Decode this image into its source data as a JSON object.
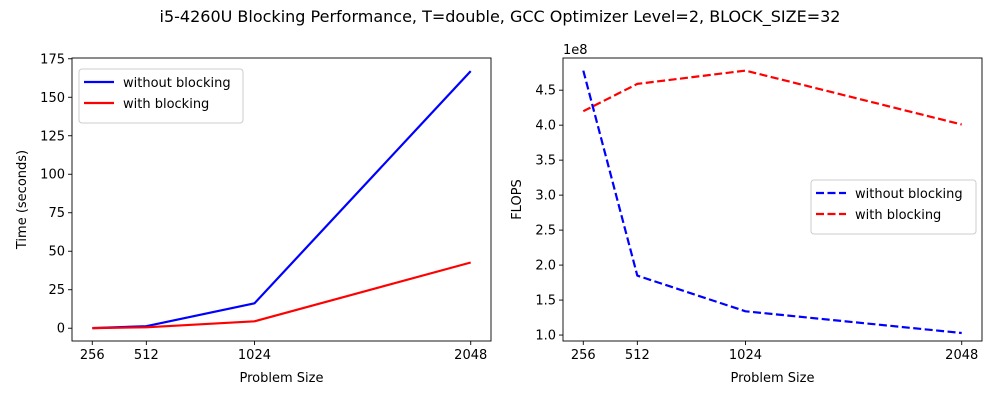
{
  "figure_title": "i5-4260U Blocking Performance, T=double, GCC Optimizer Level=2, BLOCK_SIZE=32",
  "chart_data": [
    {
      "type": "line",
      "xlabel": "Problem Size",
      "ylabel": "Time (seconds)",
      "x": [
        256,
        512,
        1024,
        2048
      ],
      "xticks": [
        256,
        512,
        1024,
        2048
      ],
      "yticks": [
        0,
        25,
        50,
        75,
        100,
        125,
        150,
        175
      ],
      "xlim": [
        160,
        2144
      ],
      "ylim": [
        -8.3,
        175.5
      ],
      "offset_text": "",
      "legend_position": "top-left",
      "line_style": "solid",
      "series": [
        {
          "name": "without blocking",
          "color": "#0000ff",
          "values": [
            0.07,
            1.3,
            16.2,
            167.0
          ]
        },
        {
          "name": "with blocking",
          "color": "#ff0000",
          "values": [
            0.08,
            0.6,
            4.5,
            42.7
          ]
        }
      ]
    },
    {
      "type": "line",
      "xlabel": "Problem Size",
      "ylabel": "FLOPS",
      "x": [
        256,
        512,
        1024,
        2048
      ],
      "xticks": [
        256,
        512,
        1024,
        2048
      ],
      "yticks": [
        1.0,
        1.5,
        2.0,
        2.5,
        3.0,
        3.5,
        4.0,
        4.5
      ],
      "ytick_labels": [
        "1.0",
        "1.5",
        "2.0",
        "2.5",
        "3.0",
        "3.5",
        "4.0",
        "4.5"
      ],
      "xlim": [
        160,
        2144
      ],
      "ylim": [
        0.915,
        4.96
      ],
      "offset_text": "1e8",
      "legend_position": "center-right",
      "line_style": "dashed",
      "series": [
        {
          "name": "without blocking",
          "color": "#0000ff",
          "values": [
            4.78,
            1.85,
            1.34,
            1.03
          ]
        },
        {
          "name": "with blocking",
          "color": "#ff0000",
          "values": [
            4.2,
            4.59,
            4.78,
            4.01
          ]
        }
      ]
    }
  ]
}
